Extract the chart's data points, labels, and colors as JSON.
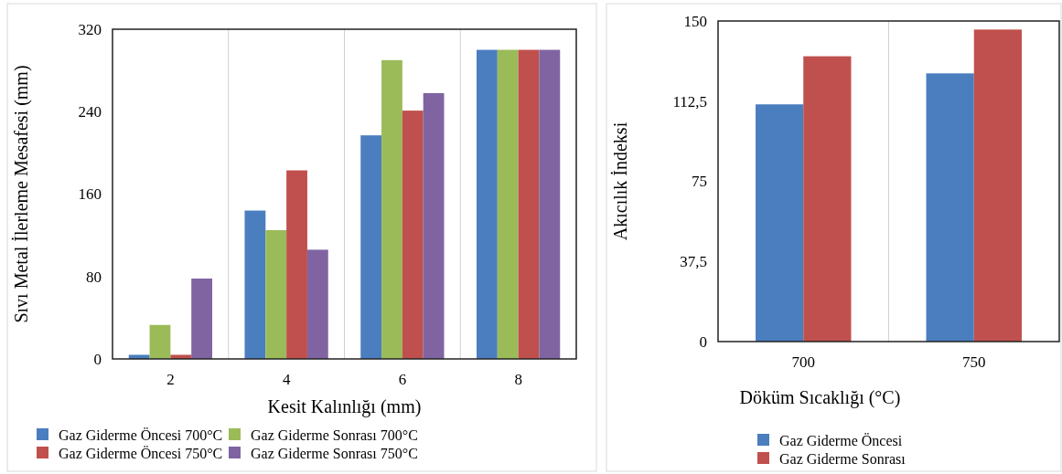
{
  "chart_data": [
    {
      "type": "bar",
      "xlabel": "Kesit Kalınlığı (mm)",
      "ylabel": "Sıvı Metal İlerleme Mesafesi (mm)",
      "categories": [
        "2",
        "4",
        "6",
        "8"
      ],
      "series": [
        {
          "name": "Gaz Giderme Öncesi 700°C",
          "color": "#4a7ebf",
          "values": [
            4,
            144,
            217,
            300
          ]
        },
        {
          "name": "Gaz Giderme Sonrası 700°C",
          "color": "#9bbb59",
          "values": [
            33,
            125,
            290,
            300
          ]
        },
        {
          "name": "Gaz Giderme Öncesi 750°C",
          "color": "#c0504d",
          "values": [
            4,
            183,
            241,
            300
          ]
        },
        {
          "name": "Gaz Giderme Sonrası 750°C",
          "color": "#8064a2",
          "values": [
            78,
            106,
            258,
            300
          ]
        }
      ],
      "ylim": [
        0,
        320
      ],
      "yticks": [
        0,
        80,
        160,
        240,
        320
      ],
      "grid": "x",
      "legend": "bottom"
    },
    {
      "type": "bar",
      "xlabel": "Döküm Sıcaklığı (°C)",
      "ylabel": "Akıcılık İndeksi",
      "categories": [
        "700",
        "750"
      ],
      "series": [
        {
          "name": "Gaz Giderme Öncesi",
          "color": "#4a7ebf",
          "values": [
            111,
            125.5
          ]
        },
        {
          "name": "Gaz Giderme Sonrası",
          "color": "#c0504d",
          "values": [
            133.5,
            146
          ]
        }
      ],
      "ylim": [
        0,
        150
      ],
      "yticks": [
        0,
        {
          "value": 37.5,
          "label": "37,5"
        },
        75,
        {
          "value": 112.5,
          "label": "112,5"
        },
        150
      ],
      "grid": "x",
      "legend": "bottom"
    }
  ]
}
